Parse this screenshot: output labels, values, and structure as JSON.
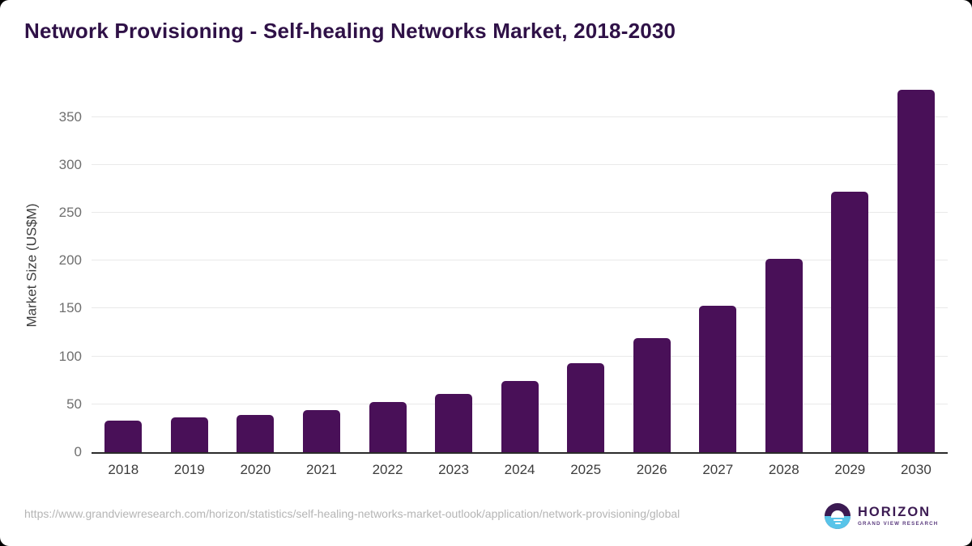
{
  "title": "Network Provisioning - Self-healing Networks Market, 2018-2030",
  "chart_data": {
    "type": "bar",
    "title": "Network Provisioning - Self-healing Networks Market, 2018-2030",
    "categories": [
      "2018",
      "2019",
      "2020",
      "2021",
      "2022",
      "2023",
      "2024",
      "2025",
      "2026",
      "2027",
      "2028",
      "2029",
      "2030"
    ],
    "values": [
      33,
      36,
      39,
      44,
      52,
      61,
      74,
      93,
      119,
      153,
      202,
      272,
      378
    ],
    "xlabel": "",
    "ylabel": "Market Size (US$M)",
    "ylim": [
      0,
      391
    ],
    "yticks": [
      0,
      50,
      100,
      150,
      200,
      250,
      300,
      350
    ],
    "grid": true,
    "legend": false,
    "bar_color": "#491058"
  },
  "footer": {
    "source_url": "https://www.grandviewresearch.com/horizon/statistics/self-healing-networks-market-outlook/application/network-provisioning/global",
    "logo": {
      "brand": "HORIZON",
      "subbrand": "GRAND VIEW RESEARCH"
    }
  },
  "colors": {
    "bar": "#491058",
    "title_text": "#2f1147",
    "axis_line": "#2b2b2b",
    "gridline": "#e9e9e9",
    "y_tick_label": "#6f6f6f",
    "x_tick_label": "#3c3c3c",
    "url_text": "#b5b5b5",
    "logo_purple": "#3b1a52",
    "logo_blue": "#58c4e9",
    "card_background": "#ffffff",
    "page_background": "#000000"
  }
}
